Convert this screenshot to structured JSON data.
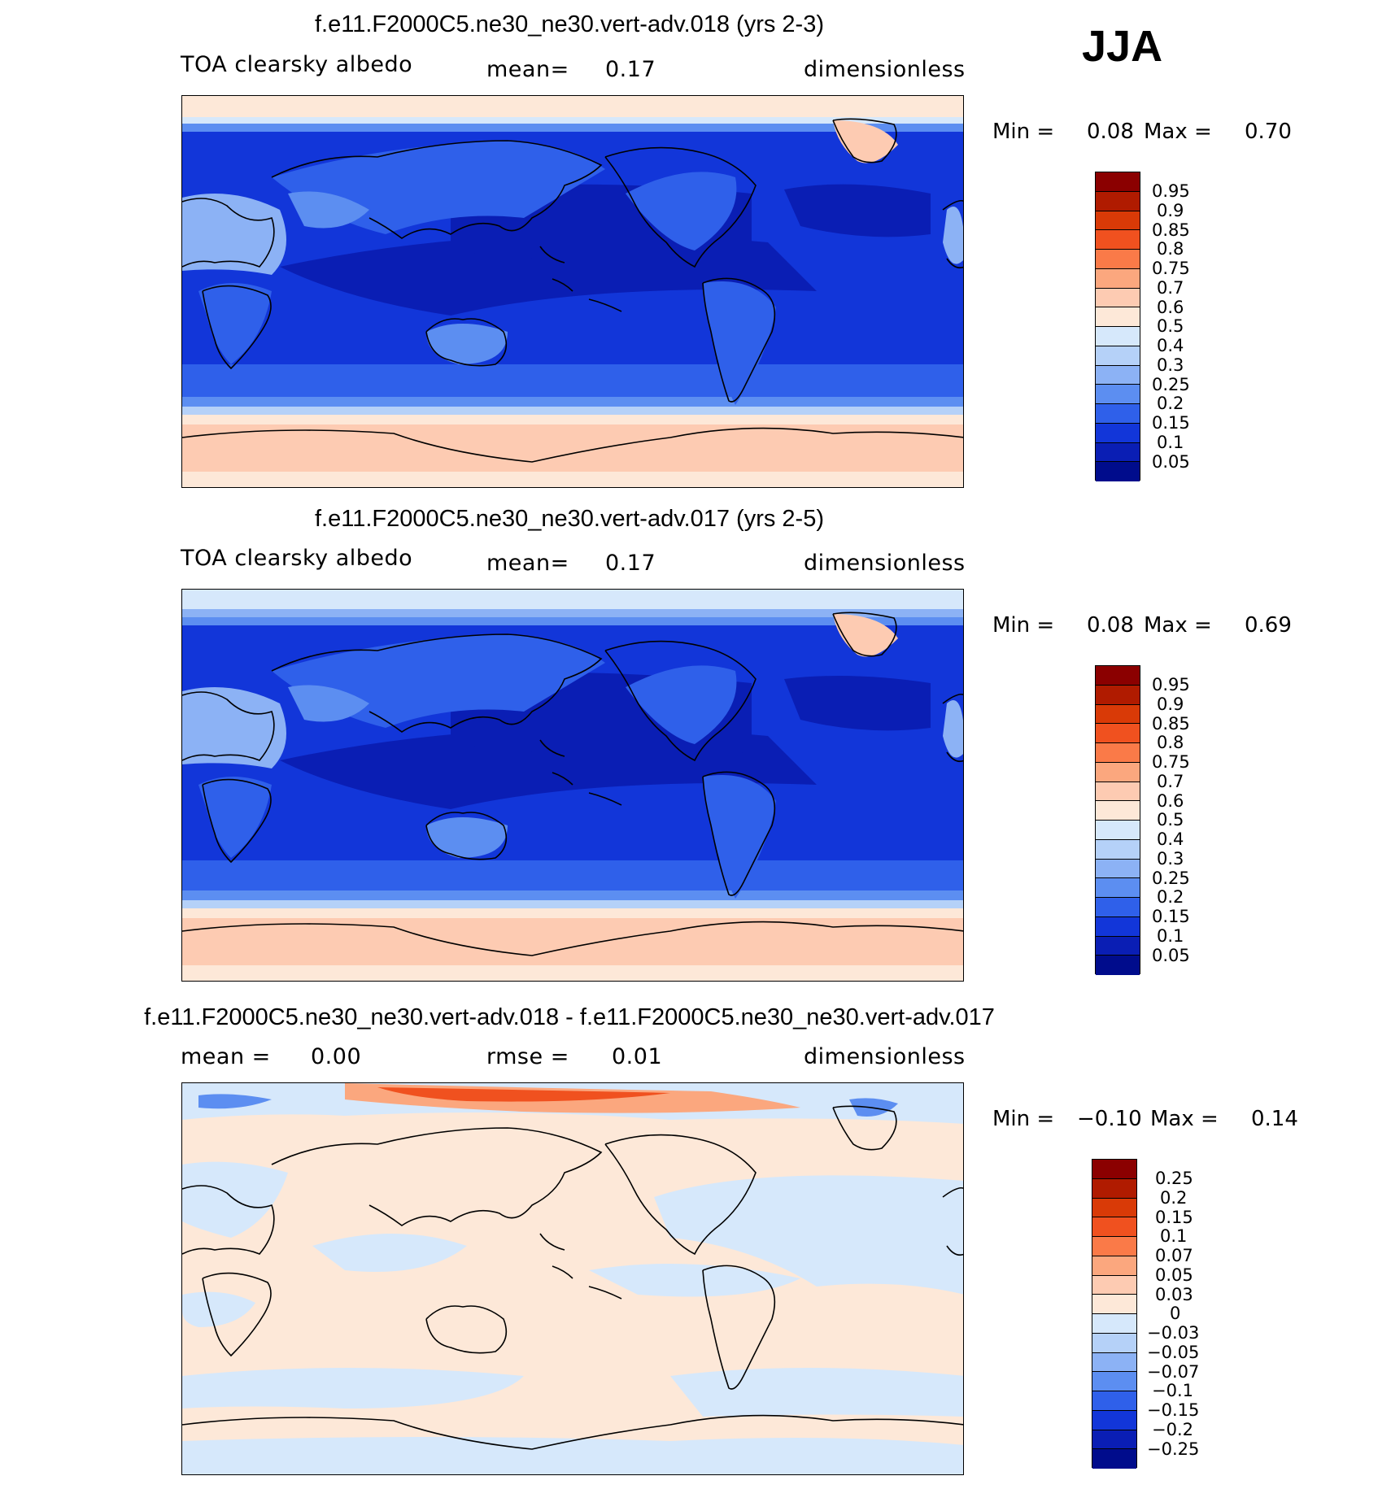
{
  "season": "JJA",
  "panels": [
    {
      "title": "f.e11.F2000C5.ne30_ne30.vert-adv.018 (yrs 2-3)",
      "variable": "TOA clearsky albedo",
      "stat_label": "mean=",
      "stat_value": "0.17",
      "units": "dimensionless",
      "min_label": "Min =",
      "min_value": "0.08",
      "max_label": "Max =",
      "max_value": "0.70",
      "levels": [
        "0.95",
        "0.9",
        "0.85",
        "0.8",
        "0.75",
        "0.7",
        "0.6",
        "0.5",
        "0.4",
        "0.3",
        "0.25",
        "0.2",
        "0.15",
        "0.1",
        "0.05"
      ]
    },
    {
      "title": "f.e11.F2000C5.ne30_ne30.vert-adv.017 (yrs 2-5)",
      "variable": "TOA clearsky albedo",
      "stat_label": "mean=",
      "stat_value": "0.17",
      "units": "dimensionless",
      "min_label": "Min =",
      "min_value": "0.08",
      "max_label": "Max =",
      "max_value": "0.69",
      "levels": [
        "0.95",
        "0.9",
        "0.85",
        "0.8",
        "0.75",
        "0.7",
        "0.6",
        "0.5",
        "0.4",
        "0.3",
        "0.25",
        "0.2",
        "0.15",
        "0.1",
        "0.05"
      ]
    },
    {
      "title": "f.e11.F2000C5.ne30_ne30.vert-adv.018 - f.e11.F2000C5.ne30_ne30.vert-adv.017",
      "stat_label": "mean =",
      "stat_value": "0.00",
      "stat2_label": "rmse =",
      "stat2_value": "0.01",
      "units": "dimensionless",
      "min_label": "Min =",
      "min_value": "−0.10",
      "max_label": "Max =",
      "max_value": "0.14",
      "levels": [
        "0.25",
        "0.2",
        "0.15",
        "0.1",
        "0.07",
        "0.05",
        "0.03",
        "0",
        "−0.03",
        "−0.05",
        "−0.07",
        "−0.1",
        "−0.15",
        "−0.2",
        "−0.25"
      ]
    }
  ],
  "colors": {
    "palette": [
      "#8b0000",
      "#b01b00",
      "#d93a07",
      "#f0511f",
      "#fa7a48",
      "#fba77e",
      "#fdcbb2",
      "#fde8d8",
      "#d6e8fb",
      "#b5d1f8",
      "#8cb2f5",
      "#5c8ef1",
      "#2f60ea",
      "#1236d9",
      "#0a1eb4",
      "#000c8c"
    ],
    "ocean_mid": "#1236d9",
    "ocean_deep": "#0a1eb4",
    "ice": "#fdcbb2",
    "diff_pos": "#fde8d8",
    "diff_neg": "#d6e8fb"
  }
}
